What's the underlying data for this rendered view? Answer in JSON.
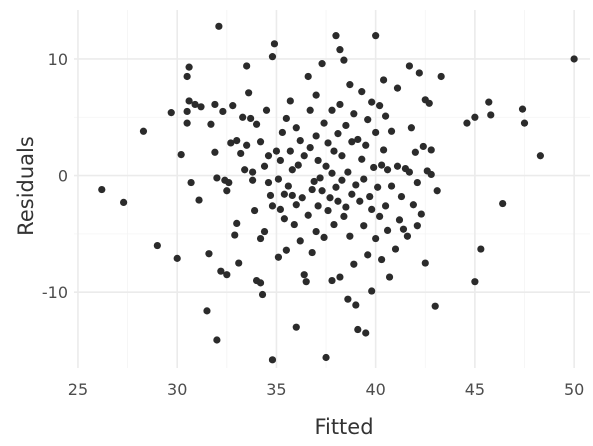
{
  "chart_data": {
    "type": "scatter",
    "title": "",
    "xlabel": "Fitted",
    "ylabel": "Residuals",
    "xlim": [
      24.8,
      50.8
    ],
    "ylim": [
      -16.5,
      14.2
    ],
    "x_ticks": [
      25,
      30,
      35,
      40,
      45,
      50
    ],
    "y_ticks": [
      -10,
      0,
      10
    ],
    "x_tick_labels": [
      "25",
      "30",
      "35",
      "40",
      "45",
      "50"
    ],
    "y_tick_labels": [
      "-10",
      "0",
      "10"
    ],
    "grid": true,
    "legend": "none",
    "point_color": "#2b2b2b",
    "background": "#ffffff",
    "grid_color": "#ebebeb",
    "points": [
      [
        26.2,
        -1.2
      ],
      [
        27.3,
        -2.3
      ],
      [
        28.3,
        3.8
      ],
      [
        29.0,
        -6.0
      ],
      [
        29.7,
        5.4
      ],
      [
        30.0,
        -7.1
      ],
      [
        30.2,
        1.8
      ],
      [
        30.5,
        8.5
      ],
      [
        30.6,
        9.3
      ],
      [
        30.6,
        6.4
      ],
      [
        30.5,
        5.5
      ],
      [
        30.5,
        4.5
      ],
      [
        30.7,
        -0.6
      ],
      [
        30.9,
        6.1
      ],
      [
        31.1,
        -2.1
      ],
      [
        31.2,
        5.9
      ],
      [
        31.5,
        -11.6
      ],
      [
        31.6,
        -6.7
      ],
      [
        31.7,
        4.4
      ],
      [
        31.9,
        6.1
      ],
      [
        31.9,
        2.0
      ],
      [
        32.0,
        -14.1
      ],
      [
        32.0,
        -0.2
      ],
      [
        32.1,
        12.8
      ],
      [
        32.2,
        -8.2
      ],
      [
        32.3,
        5.5
      ],
      [
        32.4,
        -0.4
      ],
      [
        32.5,
        -8.5
      ],
      [
        32.5,
        -1.3
      ],
      [
        32.6,
        -0.6
      ],
      [
        32.7,
        2.8
      ],
      [
        32.8,
        6.0
      ],
      [
        32.9,
        -5.1
      ],
      [
        33.0,
        -4.1
      ],
      [
        33.0,
        3.0
      ],
      [
        33.1,
        -7.5
      ],
      [
        33.2,
        1.9
      ],
      [
        33.3,
        5.0
      ],
      [
        33.4,
        0.5
      ],
      [
        33.5,
        9.4
      ],
      [
        33.5,
        2.6
      ],
      [
        33.6,
        7.1
      ],
      [
        33.7,
        4.9
      ],
      [
        33.8,
        0.3
      ],
      [
        33.8,
        -0.4
      ],
      [
        33.9,
        -3.0
      ],
      [
        34.0,
        -9.0
      ],
      [
        34.0,
        4.4
      ],
      [
        34.2,
        -9.2
      ],
      [
        34.3,
        -10.2
      ],
      [
        34.2,
        -5.4
      ],
      [
        34.2,
        2.9
      ],
      [
        34.4,
        0.8
      ],
      [
        34.5,
        5.6
      ],
      [
        34.4,
        -4.8
      ],
      [
        34.6,
        1.7
      ],
      [
        34.6,
        -0.6
      ],
      [
        34.7,
        -1.7
      ],
      [
        34.8,
        -15.8
      ],
      [
        34.8,
        10.2
      ],
      [
        34.8,
        -2.6
      ],
      [
        34.9,
        11.3
      ],
      [
        35.0,
        2.1
      ],
      [
        35.1,
        -7.0
      ],
      [
        35.1,
        -0.3
      ],
      [
        35.2,
        -2.9
      ],
      [
        35.2,
        1.3
      ],
      [
        35.3,
        3.7
      ],
      [
        35.4,
        -1.6
      ],
      [
        35.4,
        -3.7
      ],
      [
        35.5,
        -6.4
      ],
      [
        35.5,
        4.9
      ],
      [
        35.6,
        -0.9
      ],
      [
        35.7,
        6.4
      ],
      [
        35.7,
        2.1
      ],
      [
        35.8,
        -1.7
      ],
      [
        35.8,
        0.5
      ],
      [
        35.9,
        -4.2
      ],
      [
        36.0,
        -13.0
      ],
      [
        36.0,
        -2.5
      ],
      [
        36.0,
        4.1
      ],
      [
        36.1,
        0.9
      ],
      [
        36.2,
        -5.6
      ],
      [
        36.2,
        3.0
      ],
      [
        36.3,
        -1.9
      ],
      [
        36.4,
        1.7
      ],
      [
        36.4,
        -8.5
      ],
      [
        36.5,
        -9.1
      ],
      [
        36.6,
        8.5
      ],
      [
        36.6,
        -3.4
      ],
      [
        36.7,
        5.6
      ],
      [
        36.7,
        2.4
      ],
      [
        36.8,
        -1.2
      ],
      [
        36.8,
        -6.6
      ],
      [
        36.9,
        -0.5
      ],
      [
        37.0,
        6.9
      ],
      [
        37.0,
        3.4
      ],
      [
        37.0,
        -4.8
      ],
      [
        37.1,
        1.3
      ],
      [
        37.1,
        -2.6
      ],
      [
        37.2,
        -0.2
      ],
      [
        37.3,
        9.6
      ],
      [
        37.3,
        -1.3
      ],
      [
        37.4,
        4.5
      ],
      [
        37.4,
        -5.3
      ],
      [
        37.5,
        -15.6
      ],
      [
        37.5,
        0.8
      ],
      [
        37.6,
        2.8
      ],
      [
        37.6,
        -3.0
      ],
      [
        37.7,
        -1.9
      ],
      [
        37.8,
        -9.0
      ],
      [
        37.8,
        5.6
      ],
      [
        37.8,
        0.2
      ],
      [
        37.9,
        -4.2
      ],
      [
        37.9,
        2.1
      ],
      [
        38.0,
        12.0
      ],
      [
        38.0,
        -1.0
      ],
      [
        38.1,
        3.6
      ],
      [
        38.1,
        -2.2
      ],
      [
        38.2,
        -8.7
      ],
      [
        38.2,
        10.8
      ],
      [
        38.2,
        6.1
      ],
      [
        38.3,
        -0.4
      ],
      [
        38.3,
        1.7
      ],
      [
        38.4,
        -3.5
      ],
      [
        38.4,
        9.9
      ],
      [
        38.5,
        -2.7
      ],
      [
        38.5,
        4.3
      ],
      [
        38.6,
        -10.6
      ],
      [
        38.6,
        0.3
      ],
      [
        38.7,
        -5.2
      ],
      [
        38.7,
        7.8
      ],
      [
        38.8,
        2.9
      ],
      [
        38.8,
        -1.6
      ],
      [
        38.9,
        -7.6
      ],
      [
        38.9,
        5.3
      ],
      [
        39.0,
        -11.1
      ],
      [
        39.0,
        -0.8
      ],
      [
        39.1,
        -13.2
      ],
      [
        39.1,
        3.1
      ],
      [
        39.2,
        -2.2
      ],
      [
        39.3,
        7.2
      ],
      [
        39.3,
        1.4
      ],
      [
        39.4,
        -4.3
      ],
      [
        39.4,
        -0.3
      ],
      [
        39.5,
        -13.5
      ],
      [
        39.5,
        2.6
      ],
      [
        39.6,
        -6.8
      ],
      [
        39.6,
        4.8
      ],
      [
        39.7,
        -1.8
      ],
      [
        39.8,
        -9.9
      ],
      [
        39.8,
        6.3
      ],
      [
        39.8,
        -2.9
      ],
      [
        39.9,
        0.7
      ],
      [
        40.0,
        12.0
      ],
      [
        40.0,
        -5.4
      ],
      [
        40.0,
        3.7
      ],
      [
        40.1,
        -1.0
      ],
      [
        40.2,
        6.0
      ],
      [
        40.2,
        -3.5
      ],
      [
        40.3,
        0.9
      ],
      [
        40.3,
        -7.2
      ],
      [
        40.4,
        8.2
      ],
      [
        40.4,
        2.2
      ],
      [
        40.5,
        5.1
      ],
      [
        40.5,
        -2.6
      ],
      [
        40.6,
        0.5
      ],
      [
        40.6,
        -4.7
      ],
      [
        40.7,
        -8.7
      ],
      [
        40.8,
        3.8
      ],
      [
        40.8,
        -0.9
      ],
      [
        41.0,
        -6.3
      ],
      [
        41.1,
        7.5
      ],
      [
        41.1,
        0.8
      ],
      [
        41.2,
        -3.8
      ],
      [
        41.3,
        -1.8
      ],
      [
        41.4,
        -4.6
      ],
      [
        41.5,
        0.6
      ],
      [
        41.6,
        -5.2
      ],
      [
        41.7,
        9.4
      ],
      [
        41.7,
        0.3
      ],
      [
        41.8,
        4.1
      ],
      [
        41.9,
        -2.5
      ],
      [
        42.0,
        2.0
      ],
      [
        42.1,
        -0.6
      ],
      [
        42.1,
        -4.3
      ],
      [
        42.2,
        8.8
      ],
      [
        42.3,
        -3.3
      ],
      [
        42.4,
        2.5
      ],
      [
        42.5,
        6.5
      ],
      [
        42.5,
        -7.5
      ],
      [
        42.6,
        0.4
      ],
      [
        42.7,
        6.2
      ],
      [
        42.8,
        2.2
      ],
      [
        42.8,
        0.1
      ],
      [
        43.0,
        -11.2
      ],
      [
        43.1,
        -1.3
      ],
      [
        43.3,
        8.5
      ],
      [
        44.6,
        4.5
      ],
      [
        45.0,
        -9.1
      ],
      [
        45.0,
        5.0
      ],
      [
        45.3,
        -6.3
      ],
      [
        45.7,
        6.3
      ],
      [
        45.8,
        5.2
      ],
      [
        46.4,
        -2.4
      ],
      [
        47.4,
        5.7
      ],
      [
        47.5,
        4.5
      ],
      [
        48.3,
        1.7
      ],
      [
        50.0,
        10.0
      ]
    ]
  }
}
